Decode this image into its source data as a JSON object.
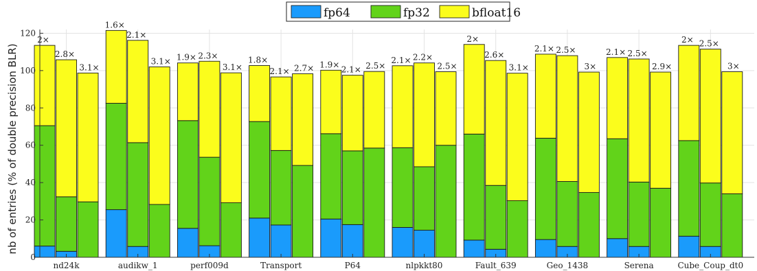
{
  "chart_data": {
    "type": "bar",
    "stacked": true,
    "ylabel": "nb of entries (% of double precision BLR)",
    "xlabel": "",
    "ylim": [
      0,
      122
    ],
    "yticks": [
      0,
      20,
      40,
      60,
      80,
      100,
      120
    ],
    "grid": true,
    "legend_position": "top-center",
    "categories": [
      "nd24k",
      "audikw_1",
      "perf009d",
      "Transport",
      "P64",
      "nlpkkt80",
      "Fault_639",
      "Geo_1438",
      "Serena",
      "Cube_Coup_dt0"
    ],
    "bars_per_category": 3,
    "series": [
      {
        "name": "fp64",
        "color": "#1a9bfc",
        "values": [
          [
            6.0,
            3.2,
            0
          ],
          [
            25.5,
            5.8,
            0
          ],
          [
            15.5,
            6.2,
            0
          ],
          [
            21.0,
            17.3,
            0
          ],
          [
            20.5,
            17.5,
            0
          ],
          [
            16.0,
            14.5,
            0
          ],
          [
            9.2,
            4.3,
            0
          ],
          [
            9.5,
            5.8,
            0
          ],
          [
            10.0,
            5.8,
            0
          ],
          [
            11.3,
            5.8,
            0
          ]
        ]
      },
      {
        "name": "fp32",
        "color": "#62d31a",
        "values": [
          [
            64.5,
            29.2,
            29.7
          ],
          [
            57.0,
            55.6,
            28.3
          ],
          [
            57.7,
            47.4,
            29.2
          ],
          [
            51.7,
            39.9,
            49.2
          ],
          [
            45.7,
            39.5,
            58.5
          ],
          [
            42.7,
            34.0,
            60.0
          ],
          [
            56.8,
            34.2,
            30.3
          ],
          [
            54.3,
            34.8,
            34.7
          ],
          [
            53.5,
            34.5,
            37.0
          ],
          [
            51.2,
            34.0,
            34.0
          ]
        ]
      },
      {
        "name": "bfloat16",
        "color": "#fbfd1c",
        "values": [
          [
            43.0,
            73.4,
            69.0
          ],
          [
            39.0,
            54.8,
            73.7
          ],
          [
            30.9,
            51.4,
            69.6
          ],
          [
            30.0,
            39.4,
            49.1
          ],
          [
            34.0,
            40.5,
            41.0
          ],
          [
            43.9,
            55.6,
            39.4
          ],
          [
            48.0,
            66.9,
            68.3
          ],
          [
            45.0,
            67.4,
            64.5
          ],
          [
            43.5,
            65.9,
            62.2
          ],
          [
            51.0,
            71.7,
            65.4
          ]
        ]
      }
    ],
    "annotations": [
      [
        "2×",
        "2.8×",
        "3.1×"
      ],
      [
        "1.6×",
        "2.1×",
        "3.1×"
      ],
      [
        "1.9×",
        "2.3×",
        "3.1×"
      ],
      [
        "1.8×",
        "2.1×",
        "2.7×"
      ],
      [
        "1.9×",
        "2.1×",
        "2.5×"
      ],
      [
        "2.1×",
        "2.2×",
        "2.5×"
      ],
      [
        "2×",
        "2.6×",
        "3.1×"
      ],
      [
        "2.1×",
        "2.5×",
        "3×"
      ],
      [
        "2.1×",
        "2.5×",
        "2.9×"
      ],
      [
        "2×",
        "2.5×",
        "3×"
      ]
    ]
  }
}
